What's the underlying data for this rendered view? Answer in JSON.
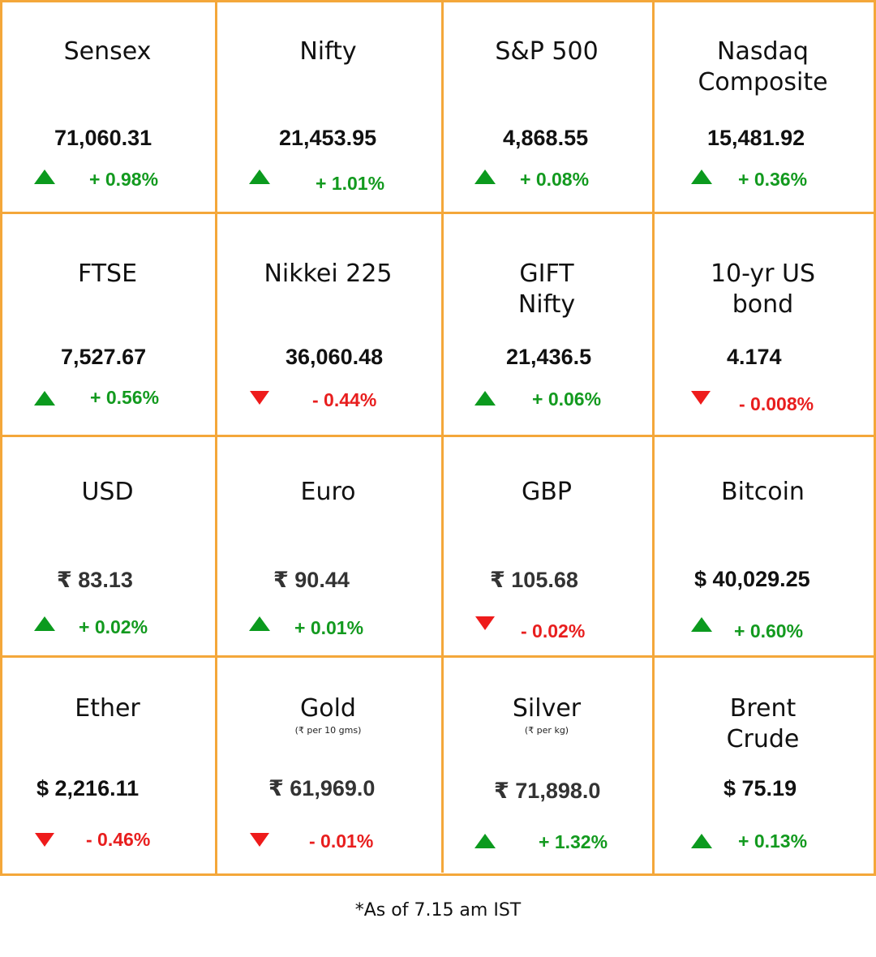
{
  "cells": [
    {
      "name": "Sensex",
      "sub": "",
      "value": "71,060.31",
      "direction": "up",
      "change": "+ 0.98%"
    },
    {
      "name": "Nifty",
      "sub": "",
      "value": "21,453.95",
      "direction": "up",
      "change": "+ 1.01%"
    },
    {
      "name": "S&P 500",
      "sub": "",
      "value": "4,868.55",
      "direction": "up",
      "change": "+ 0.08%"
    },
    {
      "name": "Nasdaq\nComposite",
      "sub": "",
      "value": "15,481.92",
      "direction": "up",
      "change": "+ 0.36%"
    },
    {
      "name": "FTSE",
      "sub": "",
      "value": "7,527.67",
      "direction": "up",
      "change": "+ 0.56%"
    },
    {
      "name": "Nikkei 225",
      "sub": "",
      "value": "36,060.48",
      "direction": "down",
      "change": "- 0.44%"
    },
    {
      "name": "GIFT\nNifty",
      "sub": "",
      "value": "21,436.5",
      "direction": "up",
      "change": "+ 0.06%"
    },
    {
      "name": "10-yr US\nbond",
      "sub": "",
      "value": "4.174",
      "direction": "down",
      "change": "- 0.008%"
    },
    {
      "name": "USD",
      "sub": "",
      "value": "₹ 83.13",
      "direction": "up",
      "change": "+ 0.02%"
    },
    {
      "name": "Euro",
      "sub": "",
      "value": "₹ 90.44",
      "direction": "up",
      "change": "+ 0.01%"
    },
    {
      "name": "GBP",
      "sub": "",
      "value": "₹ 105.68",
      "direction": "down",
      "change": "- 0.02%"
    },
    {
      "name": "Bitcoin",
      "sub": "",
      "value": "$ 40,029.25",
      "direction": "up",
      "change": "+ 0.60%"
    },
    {
      "name": "Ether",
      "sub": "",
      "value": "$ 2,216.11",
      "direction": "down",
      "change": "- 0.46%"
    },
    {
      "name": "Gold",
      "sub": "(₹ per 10 gms)",
      "value": "₹ 61,969.0",
      "direction": "down",
      "change": "- 0.01%"
    },
    {
      "name": "Silver",
      "sub": "(₹ per kg)",
      "value": "₹ 71,898.0",
      "direction": "up",
      "change": "+ 1.32%"
    },
    {
      "name": "Brent\nCrude",
      "sub": "",
      "value": "$ 75.19",
      "direction": "up",
      "change": "+ 0.13%"
    }
  ],
  "footnote": "*As of 7.15 am IST",
  "colors": {
    "border": "#f4a73a",
    "up": "#139a1f",
    "down": "#e81e1e"
  },
  "icons": {
    "up": "triangle-up-icon",
    "down": "triangle-down-icon"
  }
}
